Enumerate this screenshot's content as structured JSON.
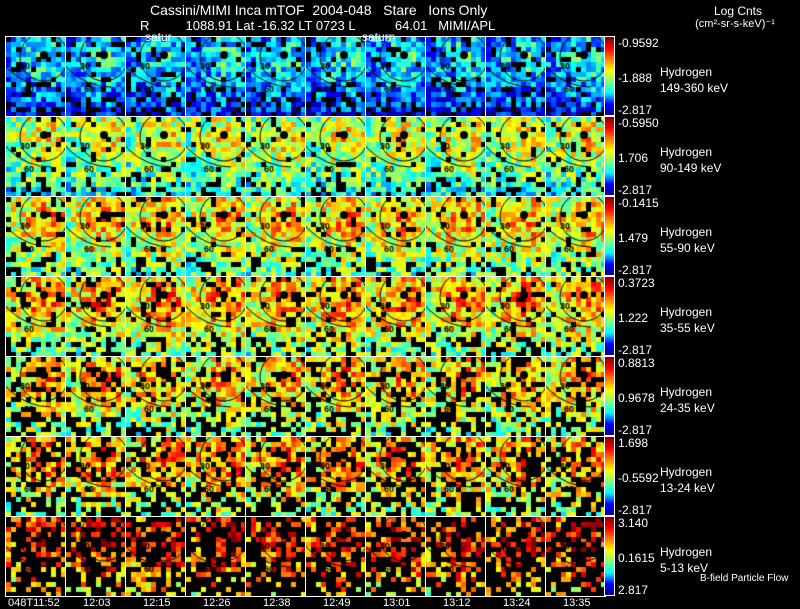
{
  "header": {
    "title": "Cassini/MIMI Inca mTOF  2004-048   Stare   Ions Only",
    "subtitle": "R          1088.91 Lat -16.32 LT 0723 L           64.01   MIMI/APL",
    "colorbar_title": "Log Cnts",
    "colorbar_units": "(cm²-sr-s-keV)⁻¹",
    "panel_labels": [
      "satur",
      "saturn"
    ]
  },
  "chart_data": {
    "type": "heatmap",
    "title": "Cassini/MIMI Inca mTOF  2004-048   Stare   Ions Only",
    "times": [
      "048T11:52",
      "12:03",
      "12:15",
      "12:26",
      "12:38",
      "12:49",
      "13:01",
      "13:12",
      "13:24",
      "13:35"
    ],
    "contour_labels": [
      "30",
      "60"
    ],
    "rows": [
      {
        "species": "Hydrogen",
        "energy": "149-360 keV",
        "max": "-0.9592",
        "mid": "-1.888",
        "min": "-2.817"
      },
      {
        "species": "Hydrogen",
        "energy": "90-149 keV",
        "max": "-0.5950",
        "mid": "1.706",
        "min": "-2.817"
      },
      {
        "species": "Hydrogen",
        "energy": "55-90 keV",
        "max": "-0.1415",
        "mid": "1.479",
        "min": "-2.817"
      },
      {
        "species": "Hydrogen",
        "energy": "35-55 keV",
        "max": "0.3723",
        "mid": "1.222",
        "min": "-2.817"
      },
      {
        "species": "Hydrogen",
        "energy": "24-35 keV",
        "max": "0.8813",
        "mid": "0.9678",
        "min": "-2.817"
      },
      {
        "species": "Hydrogen",
        "energy": "13-24 keV",
        "max": "1.698",
        "mid": "-0.5592",
        "min": "-2.817"
      },
      {
        "species": "Hydrogen",
        "energy": "5-13 keV",
        "max": "3.140",
        "mid": "0.1615",
        "min": "2.817"
      }
    ]
  },
  "footer": {
    "bfield_label": "B-field Particle Flow"
  }
}
